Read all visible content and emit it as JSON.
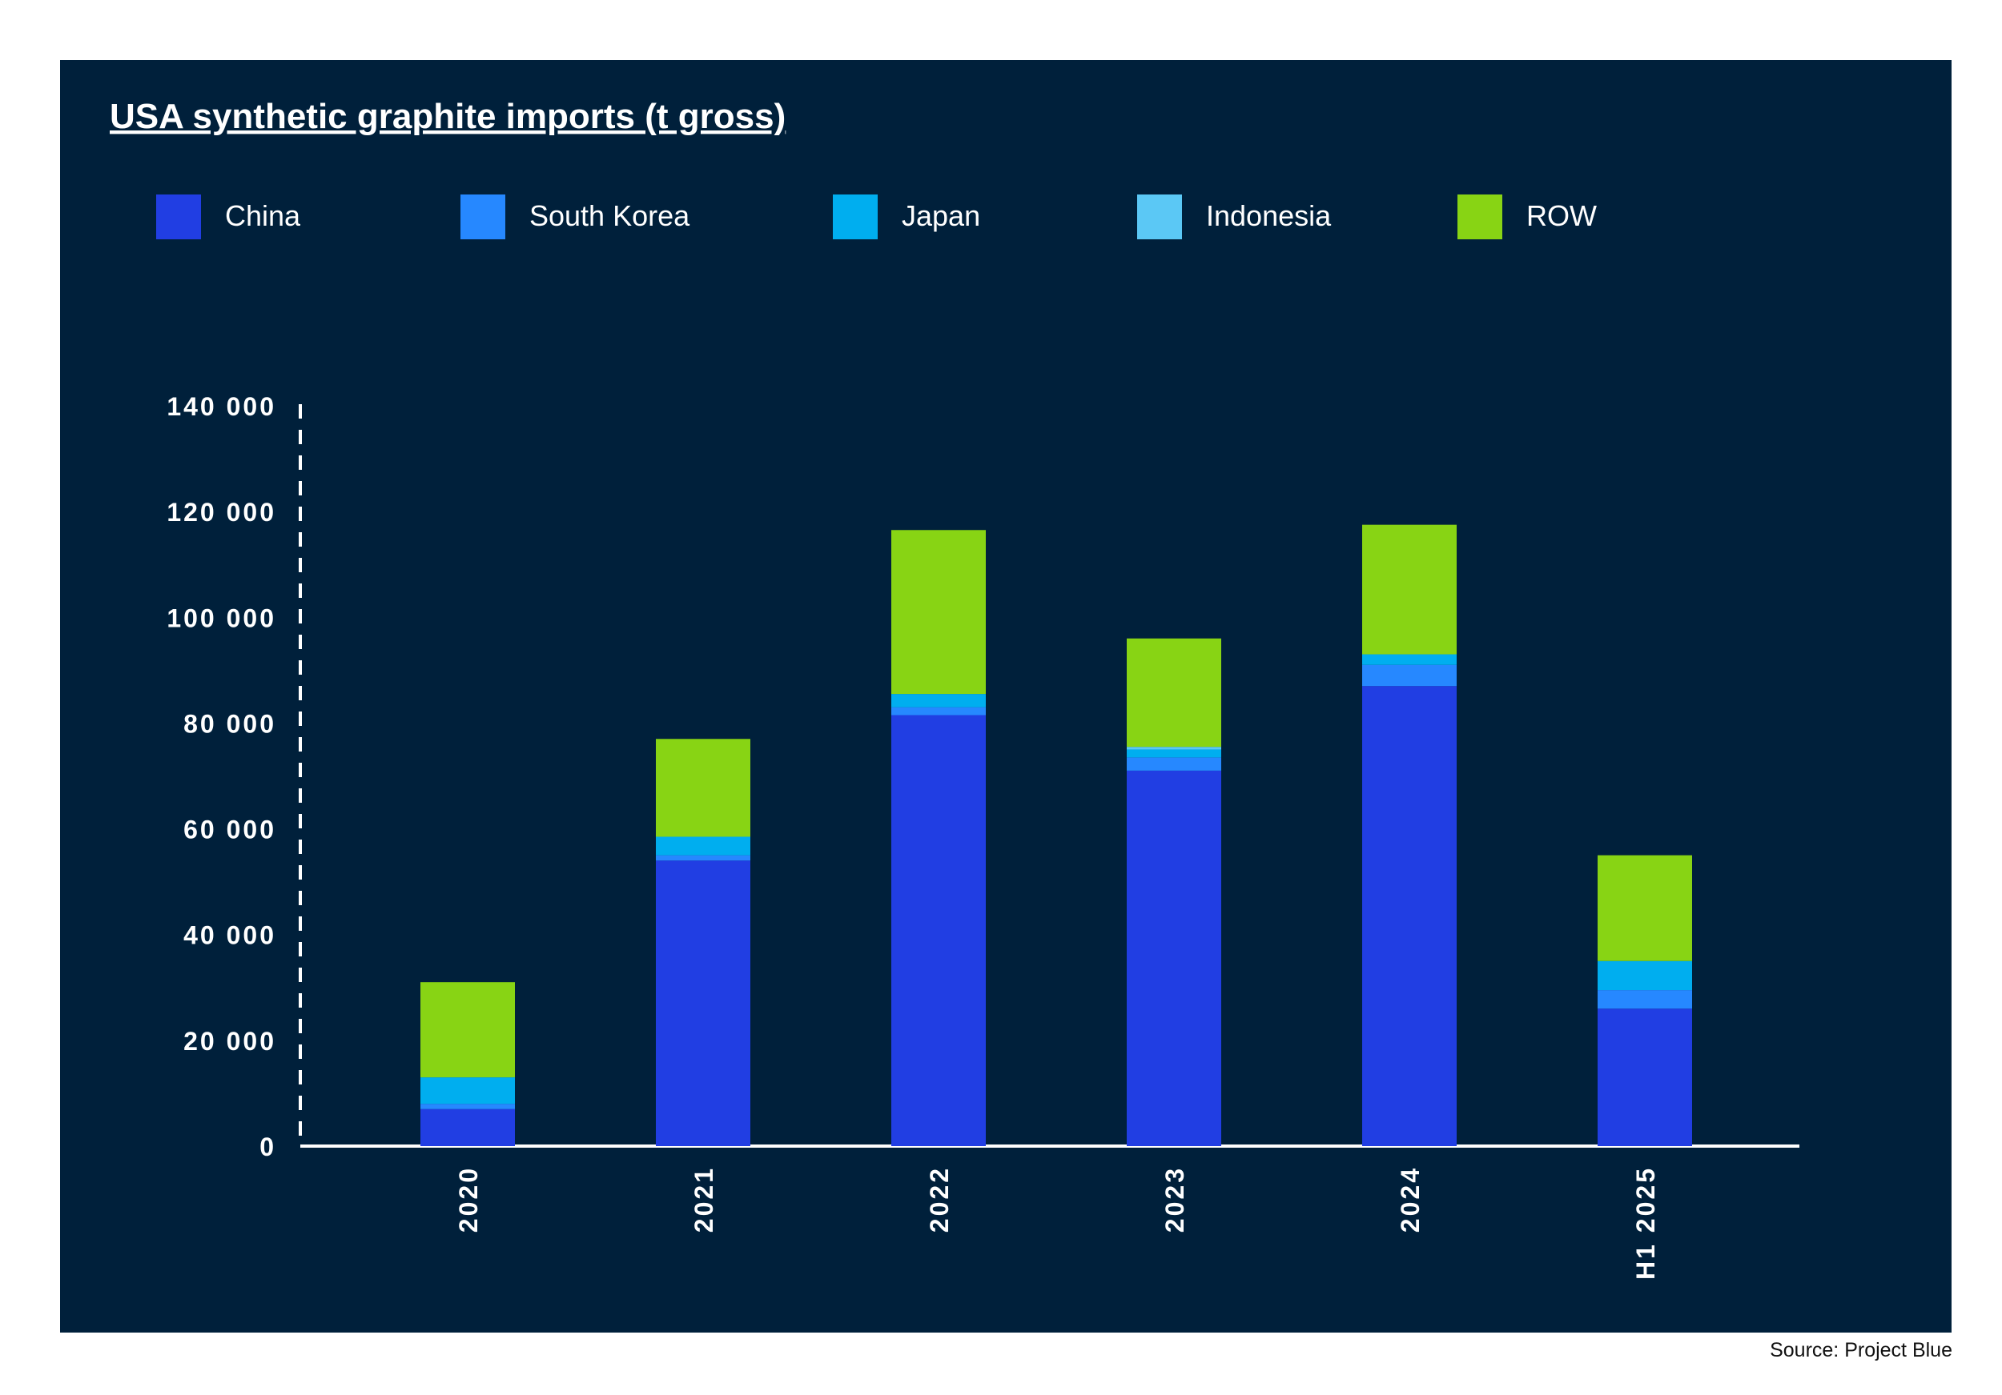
{
  "background_color": "#00203b",
  "source": "Source: Project Blue",
  "chart_data": {
    "type": "bar",
    "stacked": true,
    "title": "USA synthetic graphite imports (t gross)",
    "xlabel": "",
    "ylabel": "",
    "ylim": [
      0,
      140000
    ],
    "yticks": [
      0,
      20000,
      40000,
      60000,
      80000,
      100000,
      120000,
      140000
    ],
    "ytick_labels": [
      "0",
      "20 000",
      "40 000",
      "60 000",
      "80 000",
      "100 000",
      "120 000",
      "140 000"
    ],
    "categories": [
      "2020",
      "2021",
      "2022",
      "2023",
      "2024",
      "H1 2025"
    ],
    "legend_position": "top",
    "grid": false,
    "series": [
      {
        "name": "China",
        "color": "#213ee3",
        "values": [
          7000,
          54000,
          81500,
          71000,
          87000,
          26000
        ]
      },
      {
        "name": "South Korea",
        "color": "#2688ff",
        "values": [
          1000,
          1000,
          1500,
          2500,
          4000,
          3500
        ]
      },
      {
        "name": "Japan",
        "color": "#00aeef",
        "values": [
          5000,
          3500,
          2500,
          1500,
          2000,
          5500
        ]
      },
      {
        "name": "Indonesia",
        "color": "#5bc8f5",
        "values": [
          0,
          0,
          0,
          500,
          0,
          0
        ]
      },
      {
        "name": "ROW",
        "color": "#88d414",
        "values": [
          18000,
          18500,
          31000,
          20500,
          24500,
          20000
        ]
      }
    ]
  }
}
